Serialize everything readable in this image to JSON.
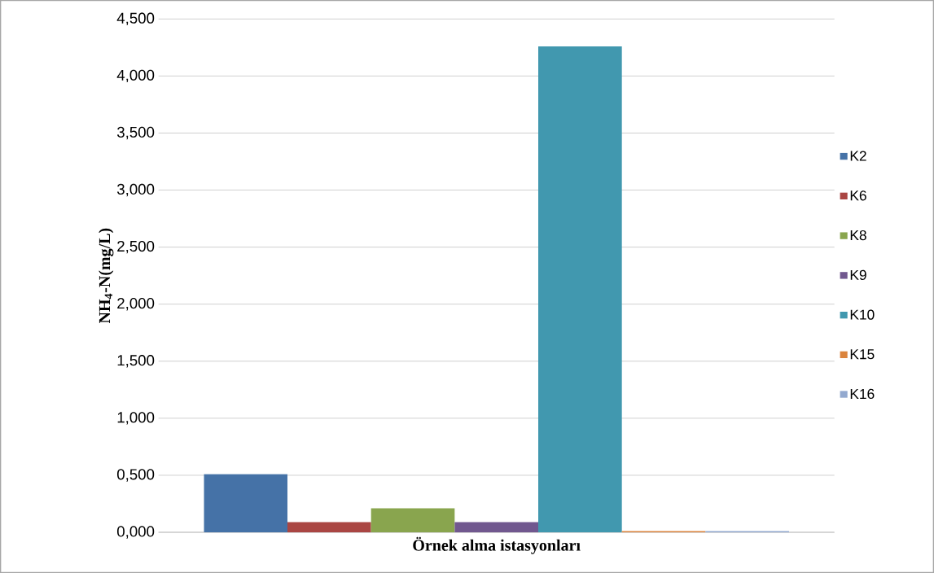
{
  "chart_data": {
    "type": "bar",
    "xlabel": "Örnek alma istasyonları",
    "ylabel": "NH$_{4}$-N(mg/L)",
    "categories": [
      null
    ],
    "series": [
      {
        "name": "K2",
        "color": "#4572a7",
        "values": [
          0.51
        ]
      },
      {
        "name": "K6",
        "color": "#aa4643",
        "values": [
          0.09
        ]
      },
      {
        "name": "K8",
        "color": "#89a54e",
        "values": [
          0.21
        ]
      },
      {
        "name": "K9",
        "color": "#71588f",
        "values": [
          0.09
        ]
      },
      {
        "name": "K10",
        "color": "#4198af",
        "values": [
          4.26
        ]
      },
      {
        "name": "K15",
        "color": "#db843d",
        "values": [
          0.01
        ]
      },
      {
        "name": "K16",
        "color": "#93a9cf",
        "values": [
          0.01
        ]
      }
    ],
    "ylim": [
      0,
      4.5
    ],
    "yticks": [
      {
        "value": 0,
        "label": "0,000"
      },
      {
        "value": 0.5,
        "label": "0,500"
      },
      {
        "value": 1,
        "label": "1,000"
      },
      {
        "value": 1.5,
        "label": "1,500"
      },
      {
        "value": 2,
        "label": "2,000"
      },
      {
        "value": 2.5,
        "label": "2,500"
      },
      {
        "value": 3,
        "label": "3,000"
      },
      {
        "value": 3.5,
        "label": "3,500"
      },
      {
        "value": 4,
        "label": "4,000"
      },
      {
        "value": 4.5,
        "label": "4,500"
      }
    ],
    "grid": "y",
    "legend": "right",
    "tick_labels": "y"
  }
}
